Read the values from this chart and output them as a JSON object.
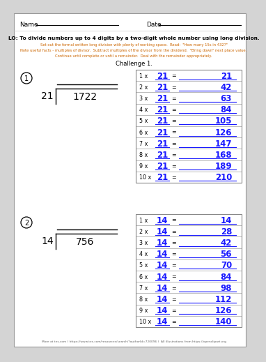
{
  "title": "Challenge 1.",
  "lo_text": "LO: To divide numbers up to 4 digits by a two-digit whole number using long division.",
  "instruction1": "Set out the formal written long division with plenty of working space.  Read:  \"How many 15s in 432?\"",
  "instruction2": "Note useful facts - multiples of divisor.  Subtract multiples of the divisor from the dividend.  \"Bring down\" next place value.",
  "instruction3": "Continue until complete or until a remainder.  Deal with the remainder appropriately.",
  "name_label": "Name",
  "date_label": "Date",
  "problem1_divisor": "21",
  "problem1_dividend": "1722",
  "problem1_multiplier": "21",
  "problem1_products": [
    21,
    42,
    63,
    84,
    105,
    126,
    147,
    168,
    189,
    210
  ],
  "problem2_divisor": "14",
  "problem2_dividend": "756",
  "problem2_multiplier": "14",
  "problem2_products": [
    14,
    28,
    42,
    56,
    70,
    84,
    98,
    112,
    126,
    140
  ],
  "footer": "More at tes.com ( https://www.tes.com/resources/search/?authorId=720096 )  All illustrations from https://openclipart.org",
  "page_bg": "#d4d4d4",
  "white": "#ffffff",
  "blue_color": "#1a1aff",
  "orange_color": "#cc6600",
  "table_border": "#888888"
}
